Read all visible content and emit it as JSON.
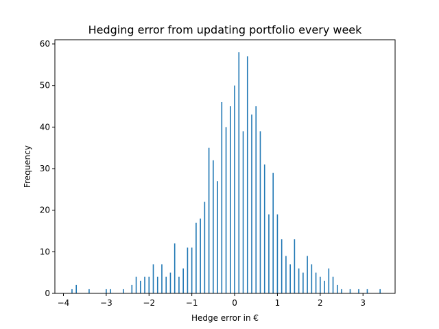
{
  "chart_data": {
    "type": "bar",
    "title": "Hedging error from updating portfolio every week",
    "xlabel": "Hedge error in €",
    "ylabel": "Frequency",
    "xlim": [
      -4.2,
      3.75
    ],
    "ylim": [
      0,
      61
    ],
    "xticks": [
      -4,
      -3,
      -2,
      -1,
      0,
      1,
      2,
      3
    ],
    "xtick_labels": [
      "−4",
      "−3",
      "−2",
      "−1",
      "0",
      "1",
      "2",
      "3"
    ],
    "yticks": [
      0,
      10,
      20,
      30,
      40,
      50,
      60
    ],
    "ytick_labels": [
      "0",
      "10",
      "20",
      "30",
      "40",
      "50",
      "60"
    ],
    "grid": false,
    "bar_color": "#1f77b4",
    "x": [
      -3.8,
      -3.7,
      -3.4,
      -3.0,
      -2.9,
      -2.6,
      -2.4,
      -2.3,
      -2.2,
      -2.1,
      -2.0,
      -1.9,
      -1.8,
      -1.7,
      -1.6,
      -1.5,
      -1.4,
      -1.3,
      -1.2,
      -1.1,
      -1.0,
      -0.9,
      -0.8,
      -0.7,
      -0.6,
      -0.5,
      -0.4,
      -0.3,
      -0.2,
      -0.1,
      0.0,
      0.1,
      0.2,
      0.3,
      0.4,
      0.5,
      0.6,
      0.7,
      0.8,
      0.9,
      1.0,
      1.1,
      1.2,
      1.3,
      1.4,
      1.5,
      1.6,
      1.7,
      1.8,
      1.9,
      2.0,
      2.1,
      2.2,
      2.3,
      2.4,
      2.5,
      2.7,
      2.9,
      3.1,
      3.4
    ],
    "values": [
      1,
      2,
      1,
      1,
      1,
      1,
      2,
      4,
      3,
      4,
      4,
      7,
      4,
      7,
      4,
      5,
      12,
      4,
      6,
      11,
      11,
      17,
      18,
      22,
      35,
      32,
      27,
      46,
      40,
      45,
      50,
      58,
      39,
      57,
      43,
      45,
      39,
      31,
      19,
      29,
      19,
      13,
      9,
      7,
      13,
      6,
      5,
      9,
      7,
      5,
      4,
      3,
      6,
      4,
      2,
      1,
      1,
      1,
      1,
      1
    ]
  }
}
